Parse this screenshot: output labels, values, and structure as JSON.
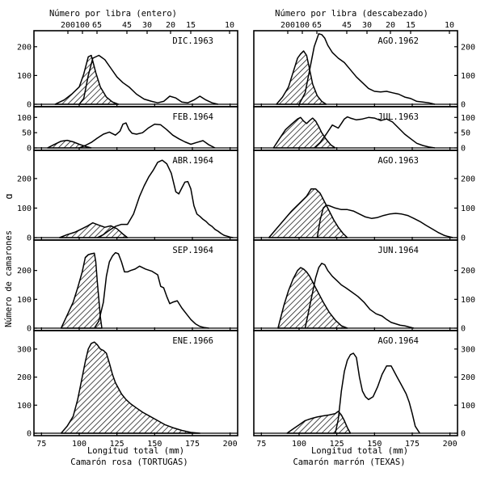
{
  "figure": {
    "ylabel": "Número de camarones",
    "left_marker": "a",
    "marker_glyph": "ɑ",
    "left_column": {
      "top_axis_label": "Número por libra (entero)",
      "top_ticks": [
        "200",
        "100",
        "65",
        "45",
        "30",
        "20",
        "15",
        "10"
      ],
      "bottom_axis_label": "Longitud total   (mm)",
      "species_label": "Camarón rosa (TORTUGAS)"
    },
    "right_column": {
      "top_axis_label": "Número por libra (descabezado)",
      "top_ticks": [
        "200",
        "100",
        "65",
        "45",
        "30",
        "20",
        "15",
        "10"
      ],
      "bottom_axis_label": "Longitud total   (mm)",
      "species_label": "Camarón marrón (TEXAS)"
    }
  },
  "chart_data": [
    {
      "type": "area",
      "column": "left",
      "row": 0,
      "title": "DIC.1963",
      "xlim": [
        70,
        205
      ],
      "ylim": [
        0,
        250
      ],
      "yticks": [
        0,
        100,
        200
      ],
      "xlabel": "Longitud total (mm)",
      "ylabel": "Número de camarones",
      "series": [
        {
          "name": "hatched",
          "x": [
            84,
            90,
            95,
            100,
            103,
            106,
            108,
            111,
            114,
            118,
            122,
            126
          ],
          "y": [
            0,
            15,
            35,
            60,
            105,
            165,
            170,
            110,
            60,
            25,
            8,
            0
          ]
        },
        {
          "name": "open",
          "x": [
            100,
            103,
            106,
            109,
            113,
            117,
            121,
            125,
            129,
            133,
            138,
            143,
            148,
            152,
            156,
            160,
            164,
            168,
            172,
            176,
            180,
            184,
            188,
            192
          ],
          "y": [
            0,
            20,
            100,
            160,
            170,
            155,
            125,
            95,
            75,
            60,
            35,
            18,
            10,
            5,
            10,
            28,
            22,
            8,
            5,
            15,
            28,
            15,
            5,
            0
          ]
        }
      ]
    },
    {
      "type": "area",
      "column": "left",
      "row": 1,
      "title": "FEB.1964",
      "xlim": [
        70,
        205
      ],
      "ylim": [
        0,
        130
      ],
      "yticks": [
        0,
        50,
        100
      ],
      "series": [
        {
          "name": "hatched",
          "x": [
            79,
            83,
            88,
            92,
            96,
            100,
            104,
            108
          ],
          "y": [
            0,
            10,
            22,
            25,
            20,
            12,
            5,
            0
          ]
        },
        {
          "name": "open",
          "x": [
            100,
            104,
            108,
            112,
            116,
            120,
            124,
            127,
            129,
            131,
            133,
            135,
            138,
            142,
            146,
            150,
            154,
            158,
            162,
            166,
            170,
            174,
            178,
            182,
            186,
            190
          ],
          "y": [
            0,
            8,
            18,
            32,
            45,
            52,
            42,
            55,
            78,
            82,
            60,
            48,
            45,
            50,
            66,
            78,
            76,
            60,
            42,
            30,
            20,
            12,
            18,
            24,
            10,
            0
          ]
        }
      ]
    },
    {
      "type": "area",
      "column": "left",
      "row": 2,
      "title": "ABR.1964",
      "xlim": [
        70,
        205
      ],
      "ylim": [
        0,
        290
      ],
      "yticks": [
        0,
        100,
        200
      ],
      "series": [
        {
          "name": "hatched",
          "x": [
            87,
            92,
            97,
            101,
            105,
            109,
            113,
            117,
            121,
            125,
            129,
            132
          ],
          "y": [
            0,
            10,
            18,
            28,
            38,
            50,
            42,
            35,
            40,
            30,
            12,
            0
          ]
        },
        {
          "name": "open",
          "x": [
            112,
            116,
            120,
            124,
            128,
            132,
            136,
            140,
            143,
            146,
            149,
            152,
            155,
            158,
            161,
            164,
            166,
            168,
            170,
            172,
            174,
            176,
            178,
            180,
            182,
            184,
            186,
            188,
            190,
            192,
            194,
            196,
            198,
            200,
            202
          ],
          "y": [
            0,
            10,
            25,
            38,
            45,
            45,
            80,
            140,
            175,
            205,
            228,
            255,
            262,
            250,
            218,
            155,
            148,
            168,
            188,
            190,
            165,
            108,
            80,
            72,
            62,
            55,
            45,
            38,
            28,
            22,
            14,
            8,
            5,
            2,
            0
          ]
        }
      ]
    },
    {
      "type": "area",
      "column": "left",
      "row": 3,
      "title": "SEP.1964",
      "xlim": [
        70,
        205
      ],
      "ylim": [
        0,
        300
      ],
      "yticks": [
        0,
        100,
        200
      ],
      "series": [
        {
          "name": "hatched",
          "x": [
            88,
            92,
            96,
            99,
            102,
            104,
            106,
            108,
            110,
            111,
            112,
            113,
            114,
            115
          ],
          "y": [
            0,
            45,
            90,
            140,
            195,
            245,
            255,
            258,
            260,
            230,
            160,
            100,
            40,
            0
          ]
        },
        {
          "name": "open",
          "x": [
            110,
            113,
            116,
            118,
            120,
            122,
            124,
            126,
            128,
            130,
            132,
            134,
            137,
            140,
            144,
            148,
            152,
            154,
            156,
            158,
            160,
            162,
            165,
            168,
            171,
            174,
            177,
            180,
            183,
            186
          ],
          "y": [
            0,
            25,
            90,
            180,
            230,
            250,
            262,
            258,
            230,
            195,
            195,
            200,
            205,
            215,
            205,
            198,
            185,
            145,
            140,
            110,
            85,
            90,
            95,
            70,
            50,
            30,
            15,
            6,
            2,
            0
          ]
        }
      ]
    },
    {
      "type": "area",
      "column": "left",
      "row": 4,
      "title": "ENE.1966",
      "xlim": [
        70,
        205
      ],
      "ylim": [
        0,
        360
      ],
      "yticks": [
        0,
        100,
        200,
        300
      ],
      "series": [
        {
          "name": "hatched",
          "x": [
            88,
            92,
            96,
            99,
            102,
            104,
            106,
            108,
            110,
            112,
            114,
            116,
            118,
            120,
            122,
            124,
            126,
            128,
            131,
            134,
            138,
            142,
            147,
            152,
            157,
            162,
            168,
            174,
            180
          ],
          "y": [
            0,
            25,
            60,
            120,
            200,
            255,
            300,
            320,
            325,
            315,
            300,
            295,
            285,
            250,
            210,
            180,
            160,
            140,
            120,
            105,
            90,
            75,
            60,
            45,
            30,
            20,
            10,
            3,
            0
          ]
        }
      ]
    },
    {
      "type": "area",
      "column": "right",
      "row": 0,
      "title": "AGO.1962",
      "xlim": [
        70,
        205
      ],
      "ylim": [
        0,
        250
      ],
      "yticks": [
        0,
        100,
        200
      ],
      "series": [
        {
          "name": "hatched",
          "x": [
            85,
            89,
            93,
            96,
            99,
            101,
            103,
            105,
            107,
            109,
            112,
            115,
            118
          ],
          "y": [
            0,
            25,
            60,
            110,
            160,
            175,
            185,
            170,
            120,
            70,
            30,
            10,
            0
          ]
        },
        {
          "name": "open",
          "x": [
            100,
            104,
            107,
            110,
            113,
            115,
            117,
            119,
            122,
            126,
            130,
            134,
            138,
            142,
            146,
            150,
            154,
            158,
            162,
            166,
            170,
            174,
            178,
            182,
            186,
            190
          ],
          "y": [
            0,
            40,
            120,
            200,
            245,
            242,
            230,
            205,
            180,
            160,
            145,
            120,
            95,
            75,
            55,
            45,
            43,
            45,
            40,
            35,
            25,
            20,
            10,
            8,
            5,
            0
          ]
        }
      ]
    },
    {
      "type": "area",
      "column": "right",
      "row": 1,
      "title": "JUL.1963",
      "xlim": [
        70,
        205
      ],
      "ylim": [
        0,
        130
      ],
      "yticks": [
        0,
        50,
        100
      ],
      "series": [
        {
          "name": "hatched",
          "x": [
            83,
            87,
            91,
            95,
            99,
            101,
            103,
            105,
            107,
            109,
            111,
            113,
            115,
            118,
            121,
            124
          ],
          "y": [
            0,
            30,
            60,
            78,
            95,
            100,
            88,
            80,
            90,
            98,
            88,
            70,
            50,
            28,
            10,
            0
          ]
        },
        {
          "name": "open",
          "x": [
            110,
            114,
            118,
            122,
            126,
            128,
            130,
            132,
            134,
            138,
            142,
            146,
            150,
            154,
            158,
            162,
            166,
            170,
            174,
            178,
            182,
            186,
            190
          ],
          "y": [
            0,
            18,
            45,
            75,
            65,
            80,
            95,
            102,
            98,
            92,
            95,
            100,
            98,
            90,
            95,
            85,
            65,
            45,
            30,
            15,
            8,
            3,
            0
          ]
        }
      ]
    },
    {
      "type": "area",
      "column": "right",
      "row": 2,
      "title": "AGO.1963",
      "xlim": [
        70,
        205
      ],
      "ylim": [
        0,
        290
      ],
      "yticks": [
        0,
        100,
        200
      ],
      "series": [
        {
          "name": "hatched",
          "x": [
            80,
            85,
            90,
            95,
            100,
            105,
            108,
            111,
            114,
            117,
            120,
            123,
            126,
            129,
            132
          ],
          "y": [
            0,
            30,
            60,
            90,
            115,
            140,
            165,
            165,
            150,
            120,
            90,
            60,
            35,
            15,
            0
          ]
        },
        {
          "name": "open",
          "x": [
            112,
            114,
            116,
            118,
            120,
            124,
            128,
            132,
            136,
            140,
            144,
            148,
            152,
            156,
            160,
            164,
            168,
            172,
            176,
            180,
            184,
            188,
            192,
            196,
            198,
            202
          ],
          "y": [
            0,
            60,
            100,
            110,
            108,
            100,
            95,
            95,
            90,
            80,
            70,
            65,
            68,
            75,
            80,
            82,
            80,
            75,
            65,
            55,
            42,
            30,
            18,
            8,
            5,
            0
          ]
        }
      ]
    },
    {
      "type": "area",
      "column": "right",
      "row": 3,
      "title": "JUN.1964",
      "xlim": [
        70,
        205
      ],
      "ylim": [
        0,
        300
      ],
      "yticks": [
        0,
        100,
        200
      ],
      "series": [
        {
          "name": "hatched",
          "x": [
            86,
            90,
            93,
            96,
            99,
            101,
            103,
            105,
            107,
            109,
            111,
            113,
            116,
            120,
            124,
            128,
            132
          ],
          "y": [
            0,
            80,
            130,
            170,
            200,
            210,
            205,
            195,
            180,
            160,
            140,
            120,
            90,
            55,
            28,
            8,
            0
          ]
        },
        {
          "name": "open",
          "x": [
            104,
            108,
            111,
            113,
            115,
            117,
            119,
            122,
            125,
            128,
            131,
            135,
            139,
            143,
            147,
            151,
            155,
            158,
            161,
            164,
            167,
            170,
            173,
            176
          ],
          "y": [
            0,
            100,
            175,
            210,
            225,
            220,
            200,
            180,
            165,
            150,
            140,
            125,
            110,
            90,
            65,
            50,
            42,
            30,
            20,
            15,
            10,
            8,
            4,
            0
          ]
        }
      ]
    },
    {
      "type": "area",
      "column": "right",
      "row": 4,
      "title": "AGO.1964",
      "xlim": [
        70,
        205
      ],
      "ylim": [
        0,
        360
      ],
      "yticks": [
        0,
        100,
        200,
        300
      ],
      "series": [
        {
          "name": "hatched",
          "x": [
            92,
            96,
            100,
            104,
            108,
            112,
            116,
            120,
            124,
            126,
            128,
            130,
            132,
            134
          ],
          "y": [
            0,
            15,
            30,
            45,
            52,
            58,
            62,
            65,
            70,
            78,
            65,
            45,
            20,
            0
          ]
        },
        {
          "name": "open",
          "x": [
            124,
            126,
            128,
            130,
            132,
            134,
            136,
            138,
            140,
            142,
            144,
            146,
            149,
            152,
            155,
            158,
            161,
            163,
            165,
            167,
            169,
            171,
            173,
            175,
            177,
            180
          ],
          "y": [
            0,
            50,
            150,
            220,
            260,
            280,
            285,
            270,
            200,
            150,
            130,
            120,
            130,
            165,
            210,
            240,
            240,
            220,
            200,
            180,
            160,
            140,
            110,
            70,
            25,
            0
          ]
        }
      ]
    }
  ]
}
